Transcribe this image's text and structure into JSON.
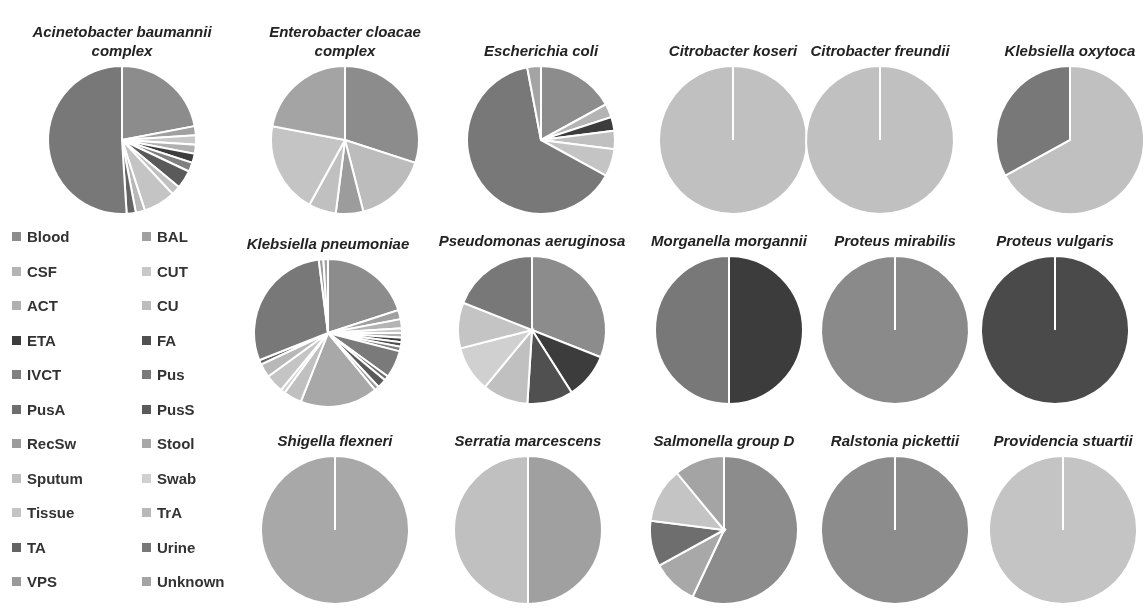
{
  "chart_data": [
    {
      "type": "pie",
      "title": "Acinetobacter baumannii complex",
      "legend": "bottom",
      "categories": [
        "Blood",
        "BAL",
        "CSF",
        "CUT",
        "ACT",
        "CU",
        "ETA",
        "FA",
        "IVCT",
        "Pus",
        "PusA",
        "PusS",
        "RecSw",
        "Stool",
        "Sputum",
        "Swab",
        "Tissue",
        "TrA",
        "TA",
        "Urine",
        "VPS",
        "Unknown"
      ],
      "values": [
        22,
        2,
        0,
        2,
        2,
        0,
        2,
        0,
        2,
        0,
        0,
        4,
        0,
        0,
        2,
        0,
        7,
        2,
        2,
        51,
        0,
        0
      ],
      "colors": [
        "#8c8c8c",
        "#a0a0a0",
        "#b4b4b4",
        "#c8c8c8",
        "#b0b0b0",
        "#bcbcbc",
        "#3c3c3c",
        "#505050",
        "#808080",
        "#7a7a7a",
        "#6e6e6e",
        "#5a5a5a",
        "#9c9c9c",
        "#a8a8a8",
        "#c0c0c0",
        "#d0d0d0",
        "#c4c4c4",
        "#b8b8b8",
        "#646464",
        "#787878",
        "#9a9a9a",
        "#a4a4a4"
      ]
    },
    {
      "type": "pie",
      "title": "Enterobacter cloacae complex",
      "categories": [
        null,
        null,
        null,
        null,
        null,
        null
      ],
      "values": [
        30,
        16,
        6,
        6,
        20,
        22
      ],
      "colors": [
        "#8c8c8c",
        "#bcbcbc",
        "#9c9c9c",
        "#c0c0c0",
        "#c4c4c4",
        "#a4a4a4"
      ]
    },
    {
      "type": "pie",
      "title": "Escherichia coli",
      "categories": [
        null,
        null,
        null,
        null,
        null,
        null,
        null
      ],
      "values": [
        17,
        3,
        3,
        4,
        6,
        64,
        3
      ],
      "colors": [
        "#8c8c8c",
        "#b4b4b4",
        "#3c3c3c",
        "#c0c0c0",
        "#c4c4c4",
        "#787878",
        "#a4a4a4"
      ]
    },
    {
      "type": "pie",
      "title": "Citrobacter koseri",
      "categories": [
        null
      ],
      "values": [
        100
      ],
      "colors": [
        "#c0c0c0"
      ]
    },
    {
      "type": "pie",
      "title": "Citrobacter freundii",
      "categories": [
        null
      ],
      "values": [
        100
      ],
      "colors": [
        "#c0c0c0"
      ]
    },
    {
      "type": "pie",
      "title": "Klebsiella oxytoca",
      "categories": [
        null,
        null
      ],
      "values": [
        67,
        33
      ],
      "colors": [
        "#c0c0c0",
        "#787878"
      ]
    },
    {
      "type": "pie",
      "title": "Klebsiella pneumoniae",
      "categories": [
        null,
        null,
        null,
        null,
        null,
        null,
        null,
        null,
        null,
        null,
        null,
        null,
        null,
        null,
        null,
        null,
        null,
        null,
        null,
        null,
        null
      ],
      "values": [
        20,
        2,
        2,
        1,
        1,
        1,
        1,
        1,
        6,
        1,
        2,
        1,
        17,
        4,
        1,
        4,
        3,
        1,
        29,
        1,
        1
      ],
      "colors": [
        "#8c8c8c",
        "#a0a0a0",
        "#b4b4b4",
        "#c8c8c8",
        "#b0b0b0",
        "#3c3c3c",
        "#505050",
        "#808080",
        "#7a7a7a",
        "#6e6e6e",
        "#5a5a5a",
        "#9c9c9c",
        "#a8a8a8",
        "#c0c0c0",
        "#d0d0d0",
        "#c4c4c4",
        "#b8b8b8",
        "#646464",
        "#787878",
        "#9a9a9a",
        "#a4a4a4"
      ]
    },
    {
      "type": "pie",
      "title": "Pseudomonas aeruginosa",
      "categories": [
        null,
        null,
        null,
        null,
        null,
        null,
        null
      ],
      "values": [
        31,
        10,
        10,
        10,
        10,
        10,
        19
      ],
      "colors": [
        "#8c8c8c",
        "#3c3c3c",
        "#505050",
        "#c0c0c0",
        "#d0d0d0",
        "#c4c4c4",
        "#787878"
      ]
    },
    {
      "type": "pie",
      "title": "Morganella morgannii",
      "categories": [
        null,
        null
      ],
      "values": [
        50,
        50
      ],
      "colors": [
        "#3c3c3c",
        "#787878"
      ]
    },
    {
      "type": "pie",
      "title": "Proteus  mirabilis",
      "categories": [
        null
      ],
      "values": [
        100
      ],
      "colors": [
        "#8a8a8a"
      ]
    },
    {
      "type": "pie",
      "title": "Proteus vulgaris",
      "categories": [
        null
      ],
      "values": [
        100
      ],
      "colors": [
        "#4a4a4a"
      ]
    },
    {
      "type": "pie",
      "title": "Shigella flexneri",
      "categories": [
        null
      ],
      "values": [
        100
      ],
      "colors": [
        "#a8a8a8"
      ]
    },
    {
      "type": "pie",
      "title": "Serratia marcescens",
      "categories": [
        null,
        null
      ],
      "values": [
        50,
        50
      ],
      "colors": [
        "#a0a0a0",
        "#c0c0c0"
      ]
    },
    {
      "type": "pie",
      "title": "Salmonella group D",
      "categories": [
        null,
        null,
        null,
        null,
        null
      ],
      "values": [
        57,
        10,
        10,
        12,
        11
      ],
      "colors": [
        "#8c8c8c",
        "#a8a8a8",
        "#6e6e6e",
        "#c4c4c4",
        "#a4a4a4"
      ]
    },
    {
      "type": "pie",
      "title": "Ralstonia pickettii",
      "categories": [
        null
      ],
      "values": [
        100
      ],
      "colors": [
        "#8c8c8c"
      ]
    },
    {
      "type": "pie",
      "title": "Providencia stuartii",
      "categories": [
        null
      ],
      "values": [
        100
      ],
      "colors": [
        "#c4c4c4"
      ]
    }
  ]
}
